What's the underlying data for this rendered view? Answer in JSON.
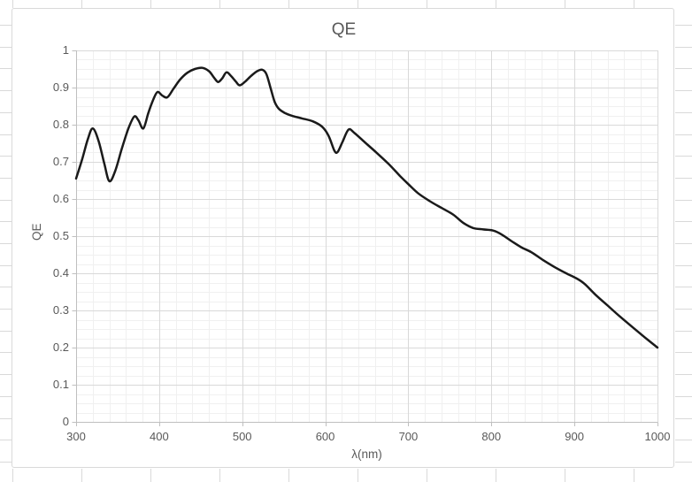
{
  "chart": {
    "colors": {
      "background": "#ffffff",
      "chart_border": "#d9d9d9",
      "grid_major": "#d9d9d9",
      "grid_minor": "#f0f0f0",
      "axis_line": "#bfbfbf",
      "tick_mark": "#bfbfbf",
      "text": "#595959",
      "series_line": "#1a1a1a"
    }
  },
  "chart_data": {
    "type": "line",
    "title": "QE",
    "xlabel": "λ(nm)",
    "ylabel": "QE",
    "xlim": [
      300,
      1000
    ],
    "ylim": [
      0,
      1
    ],
    "x_major_ticks": [
      300,
      400,
      500,
      600,
      700,
      800,
      900,
      1000
    ],
    "x_tick_labels": [
      "300",
      "400",
      "500",
      "600",
      "700",
      "800",
      "900",
      "1000"
    ],
    "y_major_ticks": [
      0,
      0.1,
      0.2,
      0.3,
      0.4,
      0.5,
      0.6,
      0.7,
      0.8,
      0.9,
      1
    ],
    "y_tick_labels": [
      "0",
      "0.1",
      "0.2",
      "0.3",
      "0.4",
      "0.5",
      "0.6",
      "0.7",
      "0.8",
      "0.9",
      "1"
    ],
    "x_minor_step": 20,
    "y_minor_step": 0.025,
    "grid": "major and minor gridlines, light gray",
    "legend": "none",
    "series": [
      {
        "name": "QE",
        "color": "#1a1a1a",
        "points": [
          [
            300,
            0.655
          ],
          [
            307,
            0.705
          ],
          [
            314,
            0.76
          ],
          [
            320,
            0.79
          ],
          [
            327,
            0.757
          ],
          [
            334,
            0.695
          ],
          [
            340,
            0.648
          ],
          [
            347,
            0.675
          ],
          [
            355,
            0.735
          ],
          [
            363,
            0.79
          ],
          [
            370,
            0.822
          ],
          [
            375,
            0.812
          ],
          [
            381,
            0.79
          ],
          [
            387,
            0.832
          ],
          [
            393,
            0.868
          ],
          [
            398,
            0.888
          ],
          [
            404,
            0.878
          ],
          [
            410,
            0.874
          ],
          [
            417,
            0.896
          ],
          [
            425,
            0.921
          ],
          [
            434,
            0.94
          ],
          [
            443,
            0.95
          ],
          [
            452,
            0.953
          ],
          [
            460,
            0.944
          ],
          [
            466,
            0.927
          ],
          [
            471,
            0.915
          ],
          [
            476,
            0.925
          ],
          [
            481,
            0.941
          ],
          [
            487,
            0.93
          ],
          [
            492,
            0.917
          ],
          [
            497,
            0.906
          ],
          [
            504,
            0.917
          ],
          [
            511,
            0.932
          ],
          [
            518,
            0.944
          ],
          [
            524,
            0.948
          ],
          [
            529,
            0.937
          ],
          [
            534,
            0.9
          ],
          [
            539,
            0.862
          ],
          [
            544,
            0.843
          ],
          [
            551,
            0.832
          ],
          [
            560,
            0.824
          ],
          [
            572,
            0.817
          ],
          [
            585,
            0.809
          ],
          [
            596,
            0.795
          ],
          [
            604,
            0.77
          ],
          [
            611,
            0.73
          ],
          [
            615,
            0.727
          ],
          [
            621,
            0.755
          ],
          [
            628,
            0.787
          ],
          [
            635,
            0.778
          ],
          [
            648,
            0.752
          ],
          [
            662,
            0.724
          ],
          [
            676,
            0.695
          ],
          [
            690,
            0.662
          ],
          [
            700,
            0.64
          ],
          [
            712,
            0.615
          ],
          [
            726,
            0.594
          ],
          [
            740,
            0.576
          ],
          [
            754,
            0.558
          ],
          [
            766,
            0.536
          ],
          [
            778,
            0.522
          ],
          [
            790,
            0.518
          ],
          [
            802,
            0.515
          ],
          [
            812,
            0.505
          ],
          [
            824,
            0.487
          ],
          [
            836,
            0.47
          ],
          [
            848,
            0.457
          ],
          [
            862,
            0.436
          ],
          [
            876,
            0.417
          ],
          [
            890,
            0.4
          ],
          [
            902,
            0.387
          ],
          [
            912,
            0.372
          ],
          [
            925,
            0.343
          ],
          [
            940,
            0.313
          ],
          [
            955,
            0.283
          ],
          [
            970,
            0.255
          ],
          [
            985,
            0.227
          ],
          [
            1000,
            0.2
          ]
        ]
      }
    ]
  }
}
